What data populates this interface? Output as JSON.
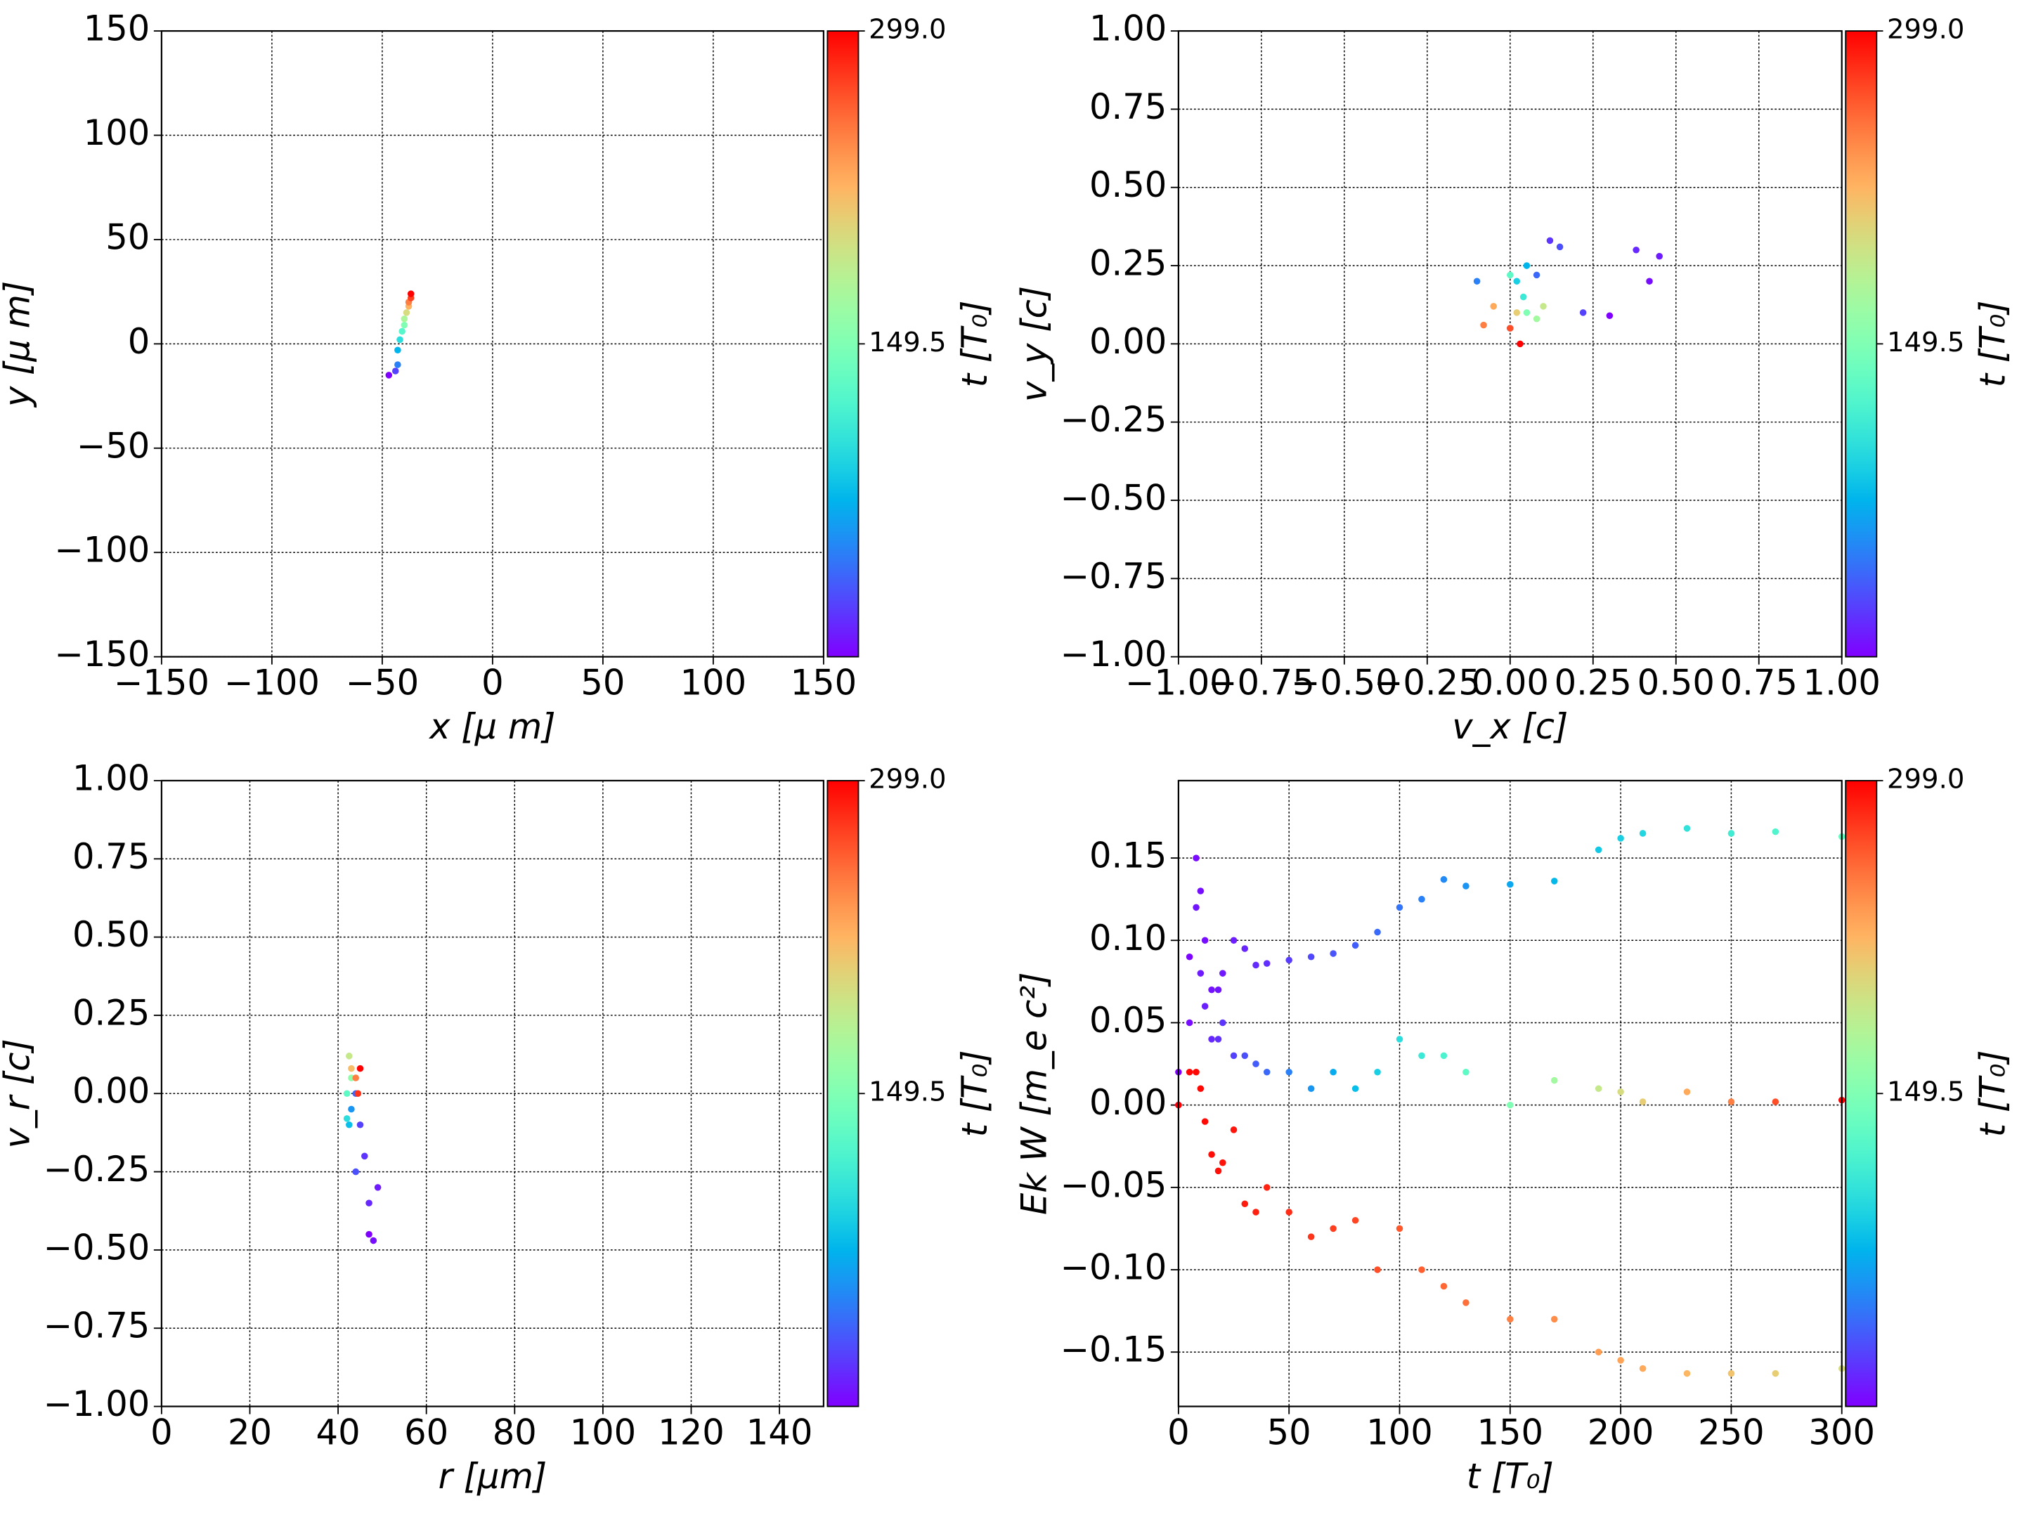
{
  "chart_data": [
    {
      "type": "scatter",
      "xlabel": "x  [μ m]",
      "ylabel": "y  [μ m]",
      "colormap": "rainbow",
      "grid": true,
      "xlim": [
        -150,
        150
      ],
      "ylim": [
        -150,
        150
      ],
      "xticks": [
        {
          "value": -150,
          "label": "−150"
        },
        {
          "value": -100,
          "label": "−100"
        },
        {
          "value": -50,
          "label": "−50"
        },
        0,
        50,
        100,
        150
      ],
      "yticks": [
        {
          "value": -150,
          "label": "−150"
        },
        {
          "value": -100,
          "label": "−100"
        },
        {
          "value": -50,
          "label": "−50"
        },
        0,
        50,
        100,
        150
      ],
      "x": [
        -47,
        -44,
        -43,
        -43,
        -42,
        -41,
        -40,
        -40,
        -39,
        -38,
        -38,
        -37,
        -37
      ],
      "y": [
        -15,
        -13,
        -10,
        -3,
        2,
        6,
        9,
        12,
        15,
        18,
        20,
        22,
        24
      ],
      "c": [
        0,
        25,
        50,
        75,
        100,
        125,
        150,
        175,
        200,
        225,
        250,
        275,
        299
      ],
      "colorbar": {
        "label": "t [T₀]",
        "lim": [
          0,
          299
        ],
        "ticks": [
          149.5,
          {
            "value": 299,
            "label": "299.0"
          }
        ]
      }
    },
    {
      "type": "scatter",
      "xlabel": "v_x [c]",
      "ylabel": "v_y [c]",
      "colormap": "rainbow",
      "grid": true,
      "xlim": [
        -1,
        1
      ],
      "ylim": [
        -1,
        1
      ],
      "xticks": [
        {
          "value": -1,
          "label": "−1.00"
        },
        {
          "value": -0.75,
          "label": "−0.75"
        },
        {
          "value": -0.5,
          "label": "−0.50"
        },
        {
          "value": -0.25,
          "label": "−0.25"
        },
        {
          "value": 0,
          "label": "0.00"
        },
        {
          "value": 0.25,
          "label": "0.25"
        },
        {
          "value": 0.5,
          "label": "0.50"
        },
        {
          "value": 0.75,
          "label": "0.75"
        },
        {
          "value": 1,
          "label": "1.00"
        }
      ],
      "yticks": [
        {
          "value": -1,
          "label": "−1.00"
        },
        {
          "value": -0.75,
          "label": "−0.75"
        },
        {
          "value": -0.5,
          "label": "−0.50"
        },
        {
          "value": -0.25,
          "label": "−0.25"
        },
        {
          "value": 0,
          "label": "0.00"
        },
        {
          "value": 0.25,
          "label": "0.25"
        },
        {
          "value": 0.5,
          "label": "0.50"
        },
        {
          "value": 0.75,
          "label": "0.75"
        },
        {
          "value": 1,
          "label": "1.00"
        }
      ],
      "x": [
        0.3,
        0.42,
        0.45,
        0.38,
        0.12,
        0.22,
        0.15,
        0.08,
        -0.1,
        0.0,
        0.05,
        0.02,
        0.04,
        0.0,
        0.05,
        0.08,
        0.1,
        0.02,
        -0.05,
        -0.08,
        0.0,
        0.03
      ],
      "y": [
        0.09,
        0.2,
        0.28,
        0.3,
        0.33,
        0.1,
        0.31,
        0.22,
        0.2,
        0.05,
        0.25,
        0.2,
        0.15,
        0.22,
        0.1,
        0.08,
        0.12,
        0.1,
        0.12,
        0.06,
        0.05,
        0.0
      ],
      "c": [
        0,
        5,
        10,
        15,
        20,
        25,
        30,
        40,
        50,
        60,
        75,
        90,
        110,
        130,
        150,
        170,
        190,
        210,
        230,
        250,
        270,
        299
      ],
      "colorbar": {
        "label": "t [T₀]",
        "lim": [
          0,
          299
        ],
        "ticks": [
          149.5,
          {
            "value": 299,
            "label": "299.0"
          }
        ]
      }
    },
    {
      "type": "scatter",
      "xlabel": "r [μm]",
      "ylabel": "v_r [c]",
      "colormap": "rainbow",
      "grid": true,
      "xlim": [
        0,
        150
      ],
      "ylim": [
        -1,
        1
      ],
      "xticks": [
        0,
        20,
        40,
        60,
        80,
        100,
        120,
        140
      ],
      "yticks": [
        {
          "value": -1,
          "label": "−1.00"
        },
        {
          "value": -0.75,
          "label": "−0.75"
        },
        {
          "value": -0.5,
          "label": "−0.50"
        },
        {
          "value": -0.25,
          "label": "−0.25"
        },
        {
          "value": 0,
          "label": "0.00"
        },
        {
          "value": 0.25,
          "label": "0.25"
        },
        {
          "value": 0.5,
          "label": "0.50"
        },
        {
          "value": 0.75,
          "label": "0.75"
        },
        {
          "value": 1,
          "label": "1.00"
        }
      ],
      "x": [
        47,
        48,
        49,
        47,
        46,
        45,
        44,
        44,
        43,
        42.5,
        42,
        42,
        43,
        42.5,
        43,
        44,
        44.5,
        45
      ],
      "y": [
        -0.45,
        -0.47,
        -0.3,
        -0.35,
        -0.2,
        -0.1,
        -0.25,
        0.0,
        -0.05,
        -0.1,
        -0.08,
        0.0,
        0.05,
        0.12,
        0.08,
        0.05,
        0.0,
        0.08
      ],
      "c": [
        0,
        5,
        10,
        15,
        20,
        25,
        30,
        40,
        60,
        80,
        100,
        130,
        160,
        190,
        220,
        250,
        280,
        299
      ],
      "colorbar": {
        "label": "t [T₀]",
        "lim": [
          0,
          299
        ],
        "ticks": [
          149.5,
          {
            "value": 299,
            "label": "299.0"
          }
        ]
      }
    },
    {
      "type": "scatter",
      "xlabel": "t [T₀]",
      "ylabel": "Ek W [m_e c²]",
      "colormap": "rainbow",
      "grid": true,
      "xlim": [
        0,
        300
      ],
      "ylim": [
        -0.183,
        0.197
      ],
      "xticks": [
        0,
        50,
        100,
        150,
        200,
        250,
        300
      ],
      "yticks": [
        {
          "value": -0.15,
          "label": "−0.15"
        },
        {
          "value": -0.1,
          "label": "−0.10"
        },
        {
          "value": -0.05,
          "label": "−0.05"
        },
        {
          "value": 0,
          "label": "0.00"
        },
        {
          "value": 0.05,
          "label": "0.05"
        },
        {
          "value": 0.1,
          "label": "0.10"
        },
        {
          "value": 0.15,
          "label": "0.15"
        }
      ],
      "x": [
        0,
        5,
        8,
        10,
        12,
        15,
        18,
        20,
        25,
        30,
        35,
        40,
        50,
        60,
        70,
        80,
        90,
        100,
        110,
        120,
        130,
        150,
        170,
        190,
        200,
        210,
        230,
        250,
        270,
        300
      ],
      "series": [
        {
          "values": [
            0.02,
            0.09,
            0.15,
            0.13,
            0.1,
            0.07,
            0.07,
            0.08,
            0.1,
            0.095,
            0.085,
            0.086,
            0.088,
            0.09,
            0.092,
            0.097,
            0.105,
            0.12,
            0.125,
            0.137,
            0.133,
            0.134,
            0.136,
            0.155,
            0.162,
            0.165,
            0.168,
            0.165,
            0.166,
            0.163
          ],
          "c": [
            0,
            2,
            4,
            5,
            5,
            7,
            8,
            9,
            11,
            14,
            16,
            18,
            23,
            27,
            32,
            36,
            41,
            45,
            50,
            54,
            59,
            68,
            77,
            86,
            90,
            95,
            104,
            113,
            122,
            135
          ]
        },
        {
          "values": [
            0.0,
            0.05,
            0.12,
            0.08,
            0.06,
            0.04,
            0.04,
            0.05,
            0.03,
            0.03,
            0.025,
            0.02,
            0.02,
            0.01,
            0.02,
            0.01,
            0.02,
            0.04,
            0.03,
            0.03,
            0.02,
            0.0,
            0.015,
            0.01,
            0.008,
            0.002,
            0.008,
            0.002,
            0.002,
            0.003
          ],
          "c": [
            0,
            5,
            8,
            10,
            12,
            15,
            18,
            20,
            25,
            30,
            35,
            40,
            50,
            60,
            70,
            80,
            90,
            100,
            110,
            120,
            130,
            150,
            170,
            190,
            200,
            210,
            230,
            250,
            270,
            299
          ]
        },
        {
          "values": [
            0.0,
            0.02,
            0.02,
            0.01,
            -0.01,
            -0.03,
            -0.04,
            -0.035,
            -0.015,
            -0.06,
            -0.065,
            -0.05,
            -0.065,
            -0.08,
            -0.075,
            -0.07,
            -0.1,
            -0.075,
            -0.1,
            -0.11,
            -0.12,
            -0.13,
            -0.13,
            -0.15,
            -0.155,
            -0.16,
            -0.163,
            -0.163,
            -0.163,
            -0.16
          ],
          "c": [
            299,
            297,
            296,
            296,
            295,
            294,
            293,
            292,
            291,
            289,
            287,
            286,
            282,
            279,
            276,
            273,
            269,
            266,
            263,
            259,
            256,
            249,
            243,
            236,
            233,
            230,
            223,
            216,
            210,
            200
          ]
        }
      ],
      "colorbar": {
        "label": "t [T₀]",
        "lim": [
          0,
          299
        ],
        "ticks": [
          149.5,
          {
            "value": 299,
            "label": "299.0"
          }
        ]
      }
    }
  ]
}
